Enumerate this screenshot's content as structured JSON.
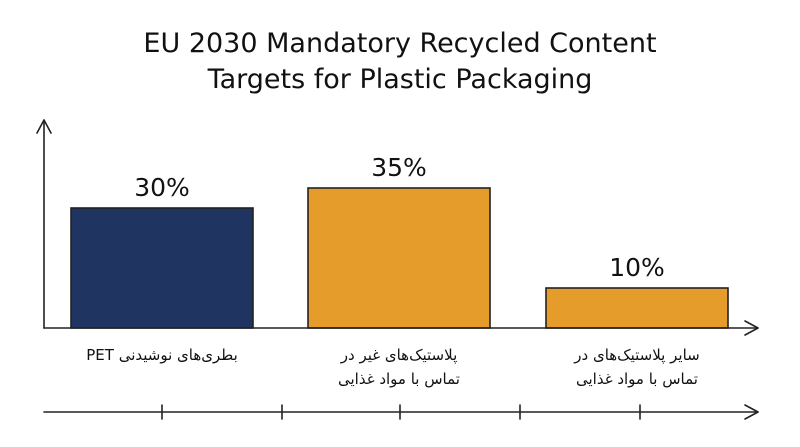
{
  "chart_data": {
    "type": "bar",
    "title": "EU 2030 Mandatory Recycled Content\nTargets for Plastic Packaging",
    "categories": [
      "بطری‌های نوشیدنی PET",
      "پلاستیک‌های غیر در\nتماس با مواد غذایی",
      "سایر پلاستیک‌های در\nتماس با مواد غذایی"
    ],
    "values": [
      30,
      35,
      10
    ],
    "value_labels": [
      "30%",
      "35%",
      "10%"
    ],
    "colors": [
      "#1f3461",
      "#e59c2b",
      "#e59c2b"
    ],
    "ylim": [
      0,
      40
    ],
    "xlabel": "",
    "ylabel": "",
    "grid": false,
    "legend": "none"
  }
}
